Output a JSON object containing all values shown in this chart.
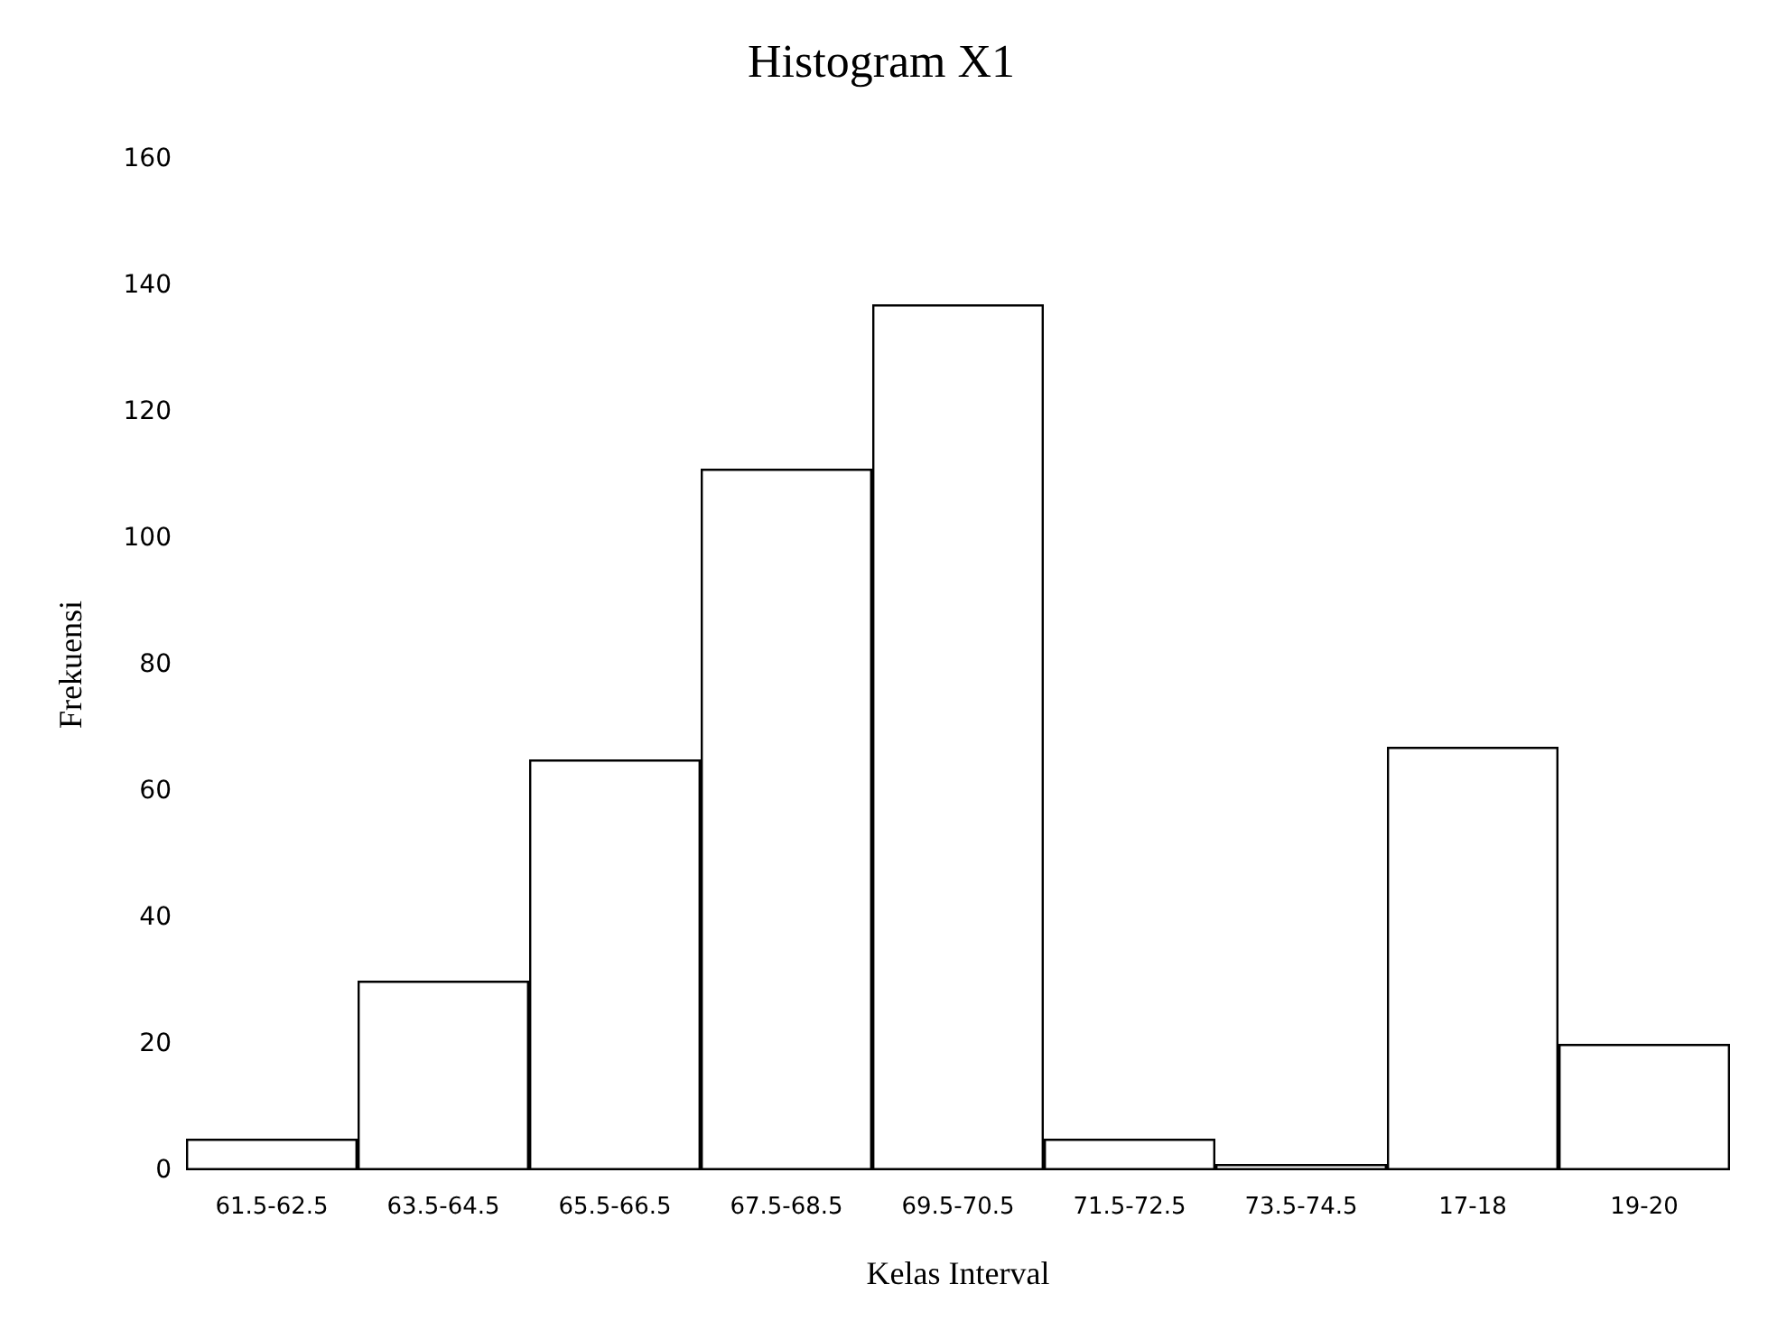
{
  "chart_data": {
    "type": "bar",
    "title": "Histogram X1",
    "xlabel": "Kelas Interval",
    "ylabel": "Frekuensi",
    "categories": [
      "61.5-62.5",
      "63.5-64.5",
      "65.5-66.5",
      "67.5-68.5",
      "69.5-70.5",
      "71.5-72.5",
      "73.5-74.5",
      "17-18",
      "19-20"
    ],
    "values": [
      5,
      30,
      65,
      111,
      137,
      5,
      1,
      67,
      20
    ],
    "color": "#000000",
    "ylim": [
      0,
      160
    ],
    "yticks": [
      0,
      20,
      40,
      60,
      80,
      100,
      120,
      140,
      160
    ],
    "grid": false
  }
}
